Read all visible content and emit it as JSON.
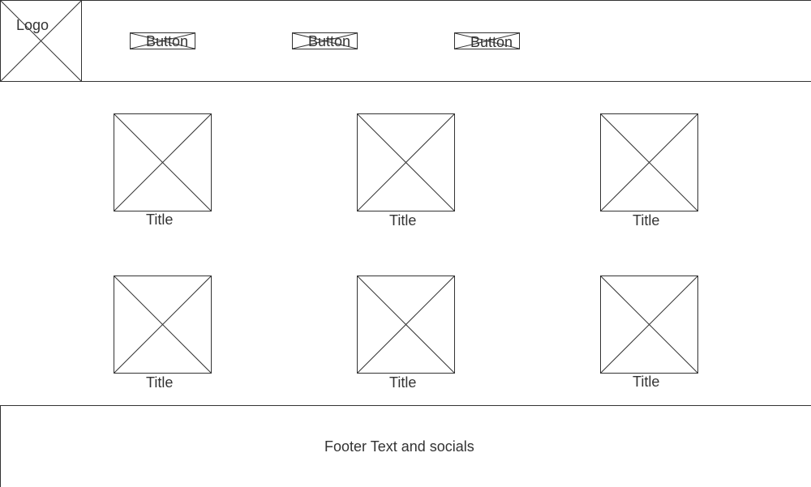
{
  "header": {
    "logo_label": "Logo",
    "nav_buttons": [
      {
        "label": "Button"
      },
      {
        "label": "Button"
      },
      {
        "label": "Button"
      }
    ]
  },
  "grid": {
    "cards": [
      {
        "title": "Title"
      },
      {
        "title": "Title"
      },
      {
        "title": "Title"
      },
      {
        "title": "Title"
      },
      {
        "title": "Title"
      },
      {
        "title": "Title"
      }
    ]
  },
  "footer": {
    "text": "Footer Text and socials"
  }
}
